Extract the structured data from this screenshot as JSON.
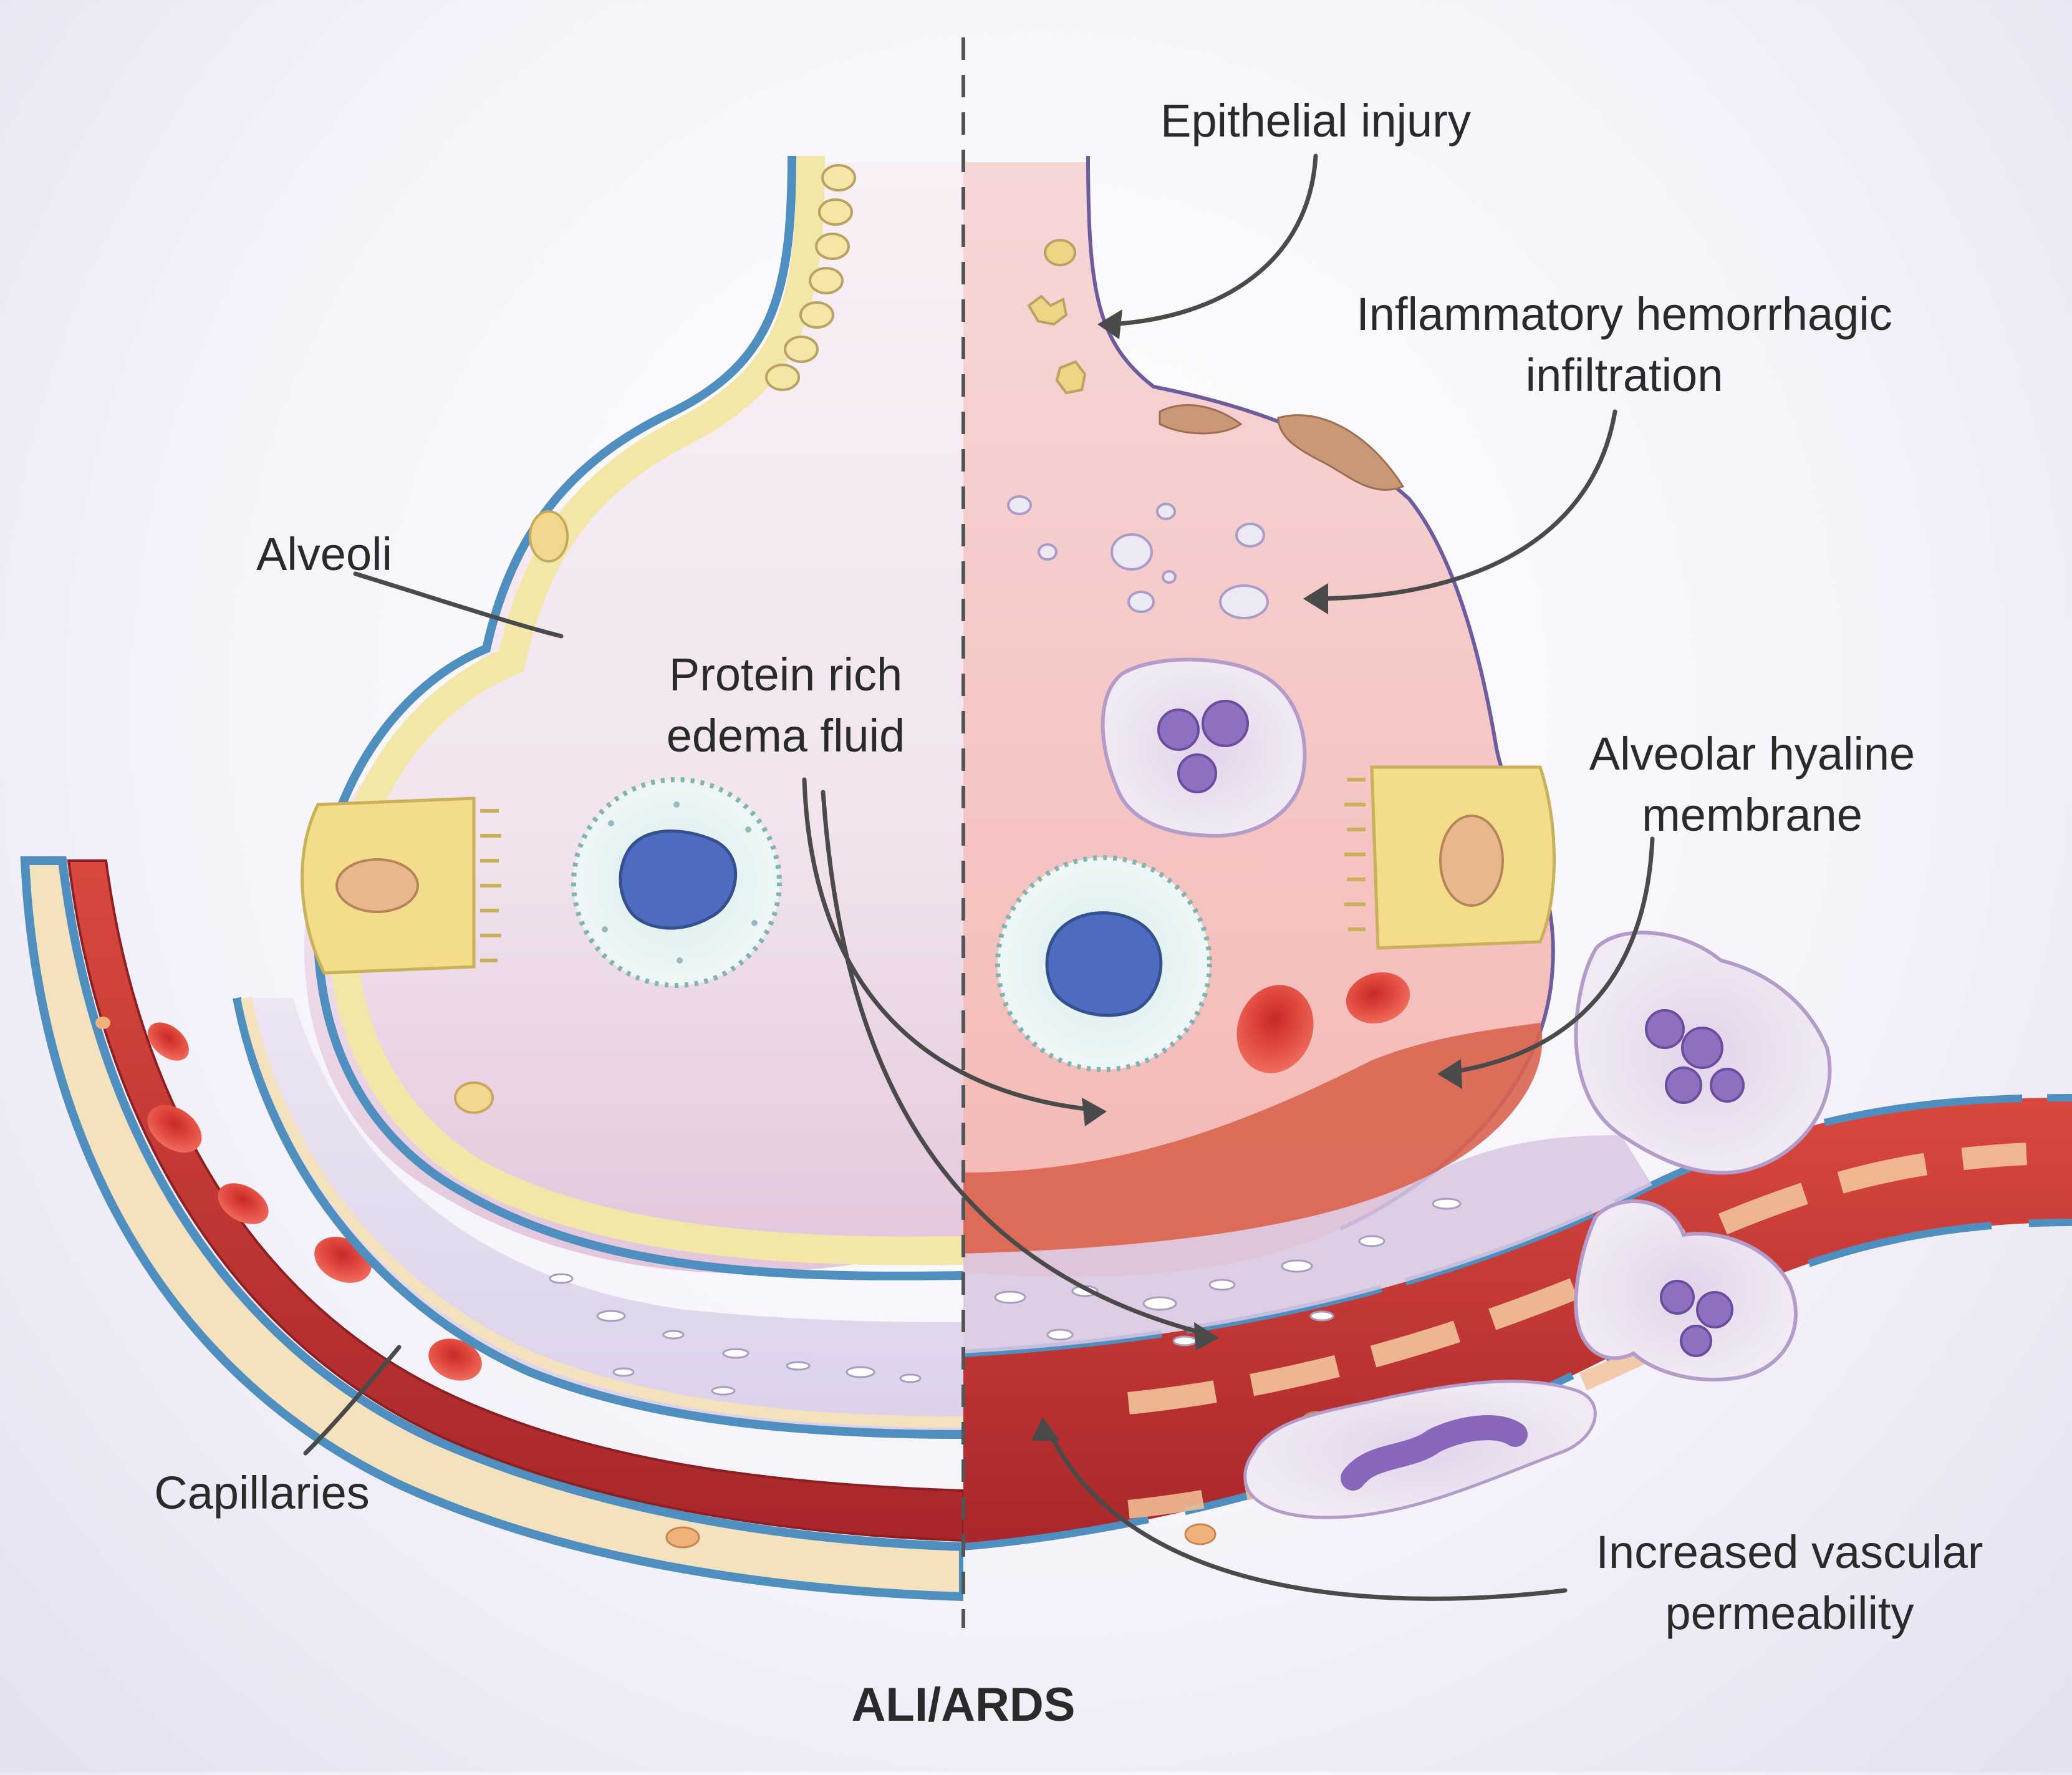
{
  "figure": {
    "title": "ALI/ARDS",
    "colors": {
      "background": "#f4f2fa",
      "alveolar_wall": "#f3e7a8",
      "wall_outline": "#4f8fbf",
      "normal_lumen": "#f5eef4",
      "injured_lumen": "#f7c9c4",
      "hyaline_membrane": "#d9644f",
      "capillary_blood": "#c93a37",
      "red_blood_cell": "#e0443c",
      "macrophage": "#dfeeee",
      "macrophage_nucleus": "#4d6cbf",
      "neutrophil": "#e7dcee",
      "neutrophil_nucleus": "#8f6fc0",
      "epithelial_cell": "#f4dd8a",
      "divider": "#555555"
    }
  },
  "labels": {
    "epithelial_injury": "Epithelial injury",
    "inflammatory": [
      "Inflammatory hemorrhagic",
      "infiltration"
    ],
    "alveoli": "Alveoli",
    "protein_rich": [
      "Protein rich",
      "edema fluid"
    ],
    "alveolar_hyaline": [
      "Alveolar hyaline",
      "membrane"
    ],
    "capillaries": "Capillaries",
    "increased_vascular": [
      "Increased vascular",
      "permeability"
    ]
  }
}
